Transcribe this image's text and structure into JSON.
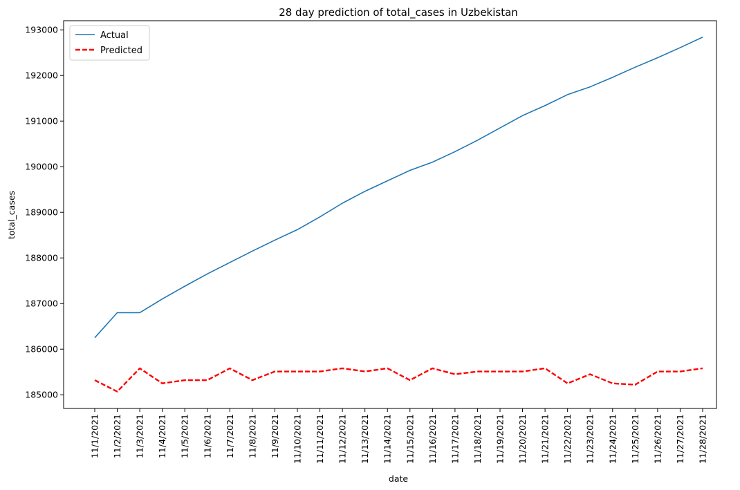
{
  "chart_data": {
    "type": "line",
    "title": "28 day prediction of total_cases in Uzbekistan",
    "xlabel": "date",
    "ylabel": "total_cases",
    "ylim": [
      184700,
      193200
    ],
    "yticks": [
      185000,
      186000,
      187000,
      188000,
      189000,
      190000,
      191000,
      192000,
      193000
    ],
    "grid": false,
    "legend_position": "top-left",
    "categories": [
      "11/1/2021",
      "11/2/2021",
      "11/3/2021",
      "11/4/2021",
      "11/5/2021",
      "11/6/2021",
      "11/7/2021",
      "11/8/2021",
      "11/9/2021",
      "11/10/2021",
      "11/11/2021",
      "11/12/2021",
      "11/13/2021",
      "11/14/2021",
      "11/15/2021",
      "11/16/2021",
      "11/17/2021",
      "11/18/2021",
      "11/19/2021",
      "11/20/2021",
      "11/21/2021",
      "11/22/2021",
      "11/23/2021",
      "11/24/2021",
      "11/25/2021",
      "11/26/2021",
      "11/27/2021",
      "11/28/2021"
    ],
    "series": [
      {
        "name": "Actual",
        "color": "#1f77b4",
        "style": "solid",
        "values": [
          186250,
          186800,
          186800,
          187100,
          187380,
          187650,
          187900,
          188150,
          188390,
          188620,
          188900,
          189200,
          189460,
          189690,
          189920,
          190100,
          190330,
          190580,
          190850,
          191120,
          191340,
          191580,
          191750,
          191960,
          192180,
          192390,
          192610,
          192840
        ]
      },
      {
        "name": "Predicted",
        "color": "#ff0000",
        "style": "dashed",
        "values": [
          185320,
          185070,
          185580,
          185250,
          185320,
          185320,
          185580,
          185320,
          185510,
          185510,
          185510,
          185580,
          185510,
          185580,
          185320,
          185580,
          185450,
          185510,
          185510,
          185510,
          185580,
          185250,
          185450,
          185250,
          185220,
          185510,
          185510,
          185580
        ]
      }
    ]
  }
}
